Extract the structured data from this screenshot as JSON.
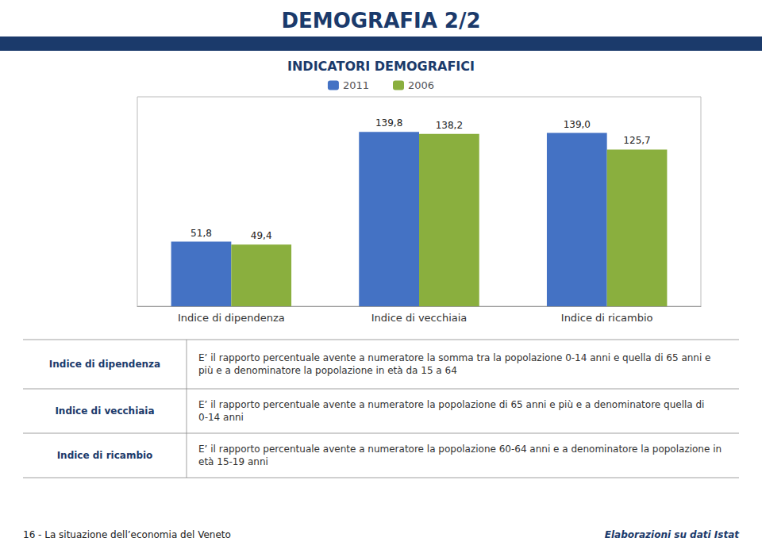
{
  "chart_data": {
    "type": "bar",
    "title": "DEMOGRAFIA 2/2",
    "subtitle": "INDICATORI DEMOGRAFICI",
    "band_color": "#1B3A6B",
    "categories": [
      "Indice di dipendenza",
      "Indice di vecchiaia",
      "Indice di ricambio"
    ],
    "series": [
      {
        "name": "2011",
        "color": "#4472C4",
        "values": [
          51.8,
          139.8,
          139.0
        ],
        "value_labels": [
          "51,8",
          "139,8",
          "139,0"
        ]
      },
      {
        "name": "2006",
        "color": "#8AAF3E",
        "values": [
          49.4,
          138.2,
          125.7
        ],
        "value_labels": [
          "49,4",
          "138,2",
          "125,7"
        ]
      }
    ],
    "ylim": [
      0,
      168
    ],
    "grid": false,
    "legend": "top",
    "data_labels": true,
    "tick_labels": "x",
    "table_rows": [
      {
        "label": "Indice di dipendenza",
        "desc": "E’ il rapporto percentuale avente a numeratore la somma tra la popolazione 0-14 anni e quella di 65 anni e più e a denominatore la popolazione in età da 15 a 64"
      },
      {
        "label": "Indice di vecchiaia",
        "desc": "E’ il rapporto percentuale avente a numeratore la popolazione di 65 anni e più e a denominatore quella di 0-14 anni"
      },
      {
        "label": "Indice di ricambio",
        "desc": "E’ il rapporto percentuale avente a numeratore la popolazione 60-64 anni e a denominatore la popolazione in età 15-19 anni"
      }
    ],
    "footer_left": "16 - La situazione dell’economia del Veneto",
    "footer_right": "Elaborazioni su dati Istat"
  }
}
